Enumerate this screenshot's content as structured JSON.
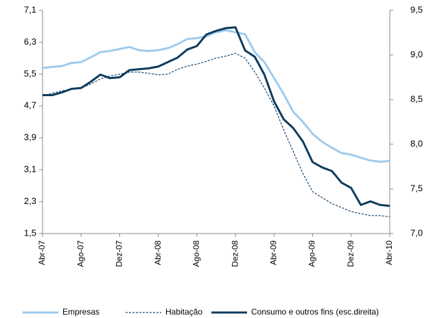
{
  "chart_data": {
    "type": "line",
    "categories": [
      "Abr-07",
      null,
      null,
      null,
      "Ago-07",
      null,
      null,
      null,
      "Dez-07",
      null,
      null,
      null,
      "Abr-08",
      null,
      null,
      null,
      "Ago-08",
      null,
      null,
      null,
      "Dez-08",
      null,
      null,
      null,
      "Abr-09",
      null,
      null,
      null,
      "Ago-09",
      null,
      null,
      null,
      "Dez-09",
      null,
      null,
      null,
      "Abr-10"
    ],
    "series": [
      {
        "name": "Empresas",
        "color": "#9ecbee",
        "dash": false,
        "values": [
          5.65,
          5.68,
          5.7,
          5.78,
          5.8,
          5.92,
          6.05,
          6.08,
          6.13,
          6.18,
          6.1,
          6.08,
          6.1,
          6.15,
          6.25,
          6.38,
          6.4,
          6.45,
          6.55,
          6.6,
          6.55,
          6.5,
          6.05,
          5.8,
          5.4,
          5.0,
          4.55,
          4.3,
          4.0,
          3.8,
          3.65,
          3.52,
          3.48,
          3.4,
          3.33,
          3.3,
          3.32
        ]
      },
      {
        "name": "Habitação",
        "color": "#1f4e79",
        "dash": true,
        "values": [
          4.95,
          5.02,
          5.08,
          5.12,
          5.15,
          5.25,
          5.38,
          5.45,
          5.5,
          5.55,
          5.55,
          5.52,
          5.48,
          5.5,
          5.62,
          5.7,
          5.75,
          5.82,
          5.9,
          5.95,
          6.02,
          5.9,
          5.55,
          5.15,
          4.7,
          4.1,
          3.55,
          3.0,
          2.55,
          2.4,
          2.25,
          2.15,
          2.05,
          2.0,
          1.95,
          1.95,
          1.92
        ]
      },
      {
        "name": "Consumo e outros fins (esc.direita)",
        "color": "#0d3b5c",
        "dash": false,
        "axis": "y2",
        "values": [
          8.55,
          8.55,
          8.58,
          8.62,
          8.63,
          8.7,
          8.78,
          8.74,
          8.75,
          8.83,
          8.84,
          8.85,
          8.87,
          8.92,
          8.97,
          9.06,
          9.1,
          9.23,
          9.27,
          9.3,
          9.31,
          9.05,
          8.98,
          8.78,
          8.48,
          8.28,
          8.18,
          8.03,
          7.8,
          7.74,
          7.7,
          7.57,
          7.51,
          7.32,
          7.36,
          7.32,
          7.31
        ]
      }
    ],
    "ylim": [
      1.5,
      7.1
    ],
    "yticks": [
      {
        "value": 1.5,
        "label": "1,5"
      },
      {
        "value": 2.3,
        "label": "2,3"
      },
      {
        "value": 3.1,
        "label": "3,1"
      },
      {
        "value": 3.9,
        "label": "3,9"
      },
      {
        "value": 4.7,
        "label": "4,7"
      },
      {
        "value": 5.5,
        "label": "5,5"
      },
      {
        "value": 6.3,
        "label": "6,3"
      },
      {
        "value": 7.1,
        "label": "7,1"
      }
    ],
    "y2lim": [
      7.0,
      9.5
    ],
    "y2ticks": [
      {
        "value": 7.0,
        "label": "7,0"
      },
      {
        "value": 7.5,
        "label": "7,5"
      },
      {
        "value": 8.0,
        "label": "8,0"
      },
      {
        "value": 8.5,
        "label": "8,5"
      },
      {
        "value": 9.0,
        "label": "9,0"
      },
      {
        "value": 9.5,
        "label": "9,5"
      }
    ],
    "grid": false,
    "legend": "bottom"
  }
}
